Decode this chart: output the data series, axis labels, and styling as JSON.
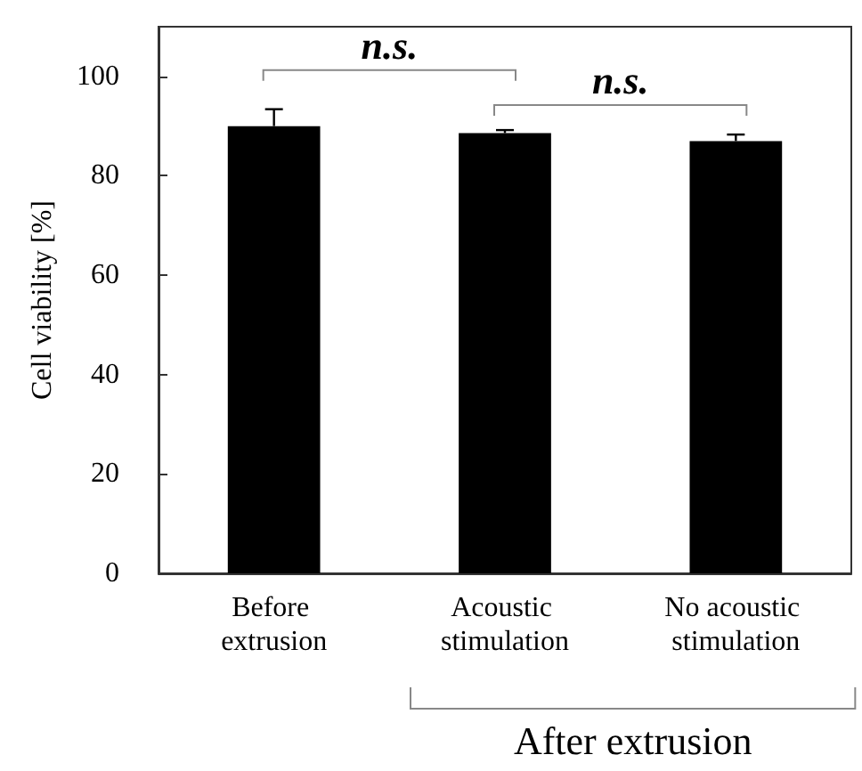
{
  "chart_data": {
    "type": "bar",
    "categories": [
      "Before extrusion",
      "Acoustic stimulation",
      "No acoustic stimulation"
    ],
    "values": [
      90,
      88.6,
      87
    ],
    "errors": [
      [
        90,
        93.4
      ],
      [
        88.6,
        89.2
      ],
      [
        87,
        88.3
      ]
    ],
    "color": "#000000",
    "ylabel": "Cell viability [%]",
    "ylim": [
      0,
      110
    ],
    "yticks": [
      0,
      20,
      40,
      60,
      80,
      100
    ],
    "grid": false,
    "annotations": [
      "n.s.",
      "n.s.",
      "After extrusion"
    ]
  }
}
